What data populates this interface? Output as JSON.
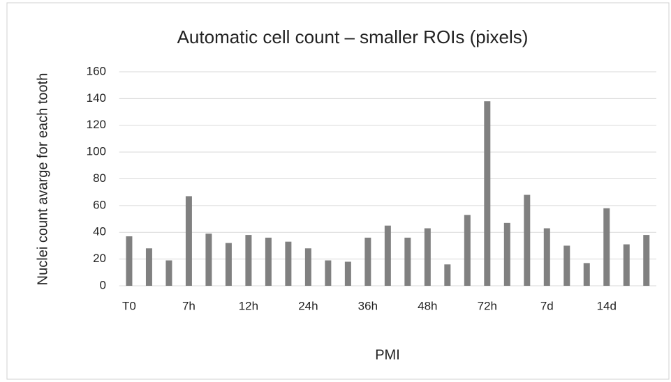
{
  "chart_data": {
    "type": "bar",
    "title": "Automatic cell count – smaller ROIs (pixels)",
    "xlabel": "PMI",
    "ylabel": "Nuclei count avarge for each tooth",
    "categories": [
      "T0",
      null,
      null,
      "7h",
      null,
      null,
      "12h",
      null,
      null,
      "24h",
      null,
      null,
      "36h",
      null,
      null,
      "48h",
      null,
      null,
      "72h",
      null,
      null,
      "7d",
      null,
      null,
      "14d",
      null,
      null
    ],
    "values": [
      37,
      28,
      19,
      67,
      39,
      32,
      38,
      36,
      33,
      28,
      19,
      18,
      36,
      45,
      36,
      43,
      16,
      53,
      138,
      47,
      68,
      43,
      30,
      17,
      58,
      31,
      38
    ],
    "color": "#808080",
    "ylim": [
      0,
      160
    ],
    "yticks": [
      0,
      20,
      40,
      60,
      80,
      100,
      120,
      140,
      160
    ],
    "grid": true
  }
}
